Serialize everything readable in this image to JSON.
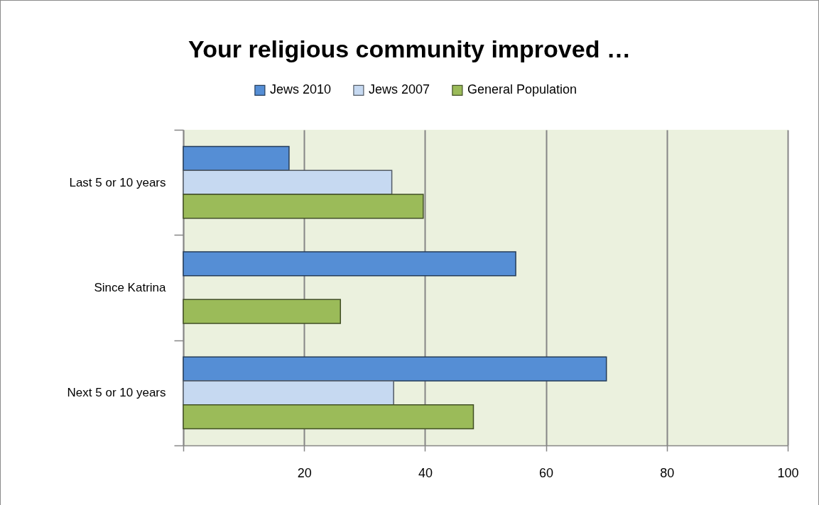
{
  "chart_data": {
    "type": "bar",
    "orientation": "horizontal",
    "title": "Your religious community improved …",
    "categories": [
      "Last 5 or 10 years",
      "Since Katrina",
      "Next 5 or 10 years"
    ],
    "series": [
      {
        "name": "Jews 2010",
        "color": "#558ed5",
        "values": [
          17.5,
          55,
          70
        ]
      },
      {
        "name": "Jews 2007",
        "color": "#c6d9f1",
        "values": [
          34.5,
          null,
          34.8
        ]
      },
      {
        "name": "General Population",
        "color": "#9bbb59",
        "values": [
          39.7,
          26,
          48
        ]
      }
    ],
    "xlim": [
      0,
      100
    ],
    "xticks": [
      {
        "value": 0,
        "label": null
      },
      20,
      40,
      60,
      80,
      100
    ],
    "grid": "x",
    "legend": "top"
  }
}
